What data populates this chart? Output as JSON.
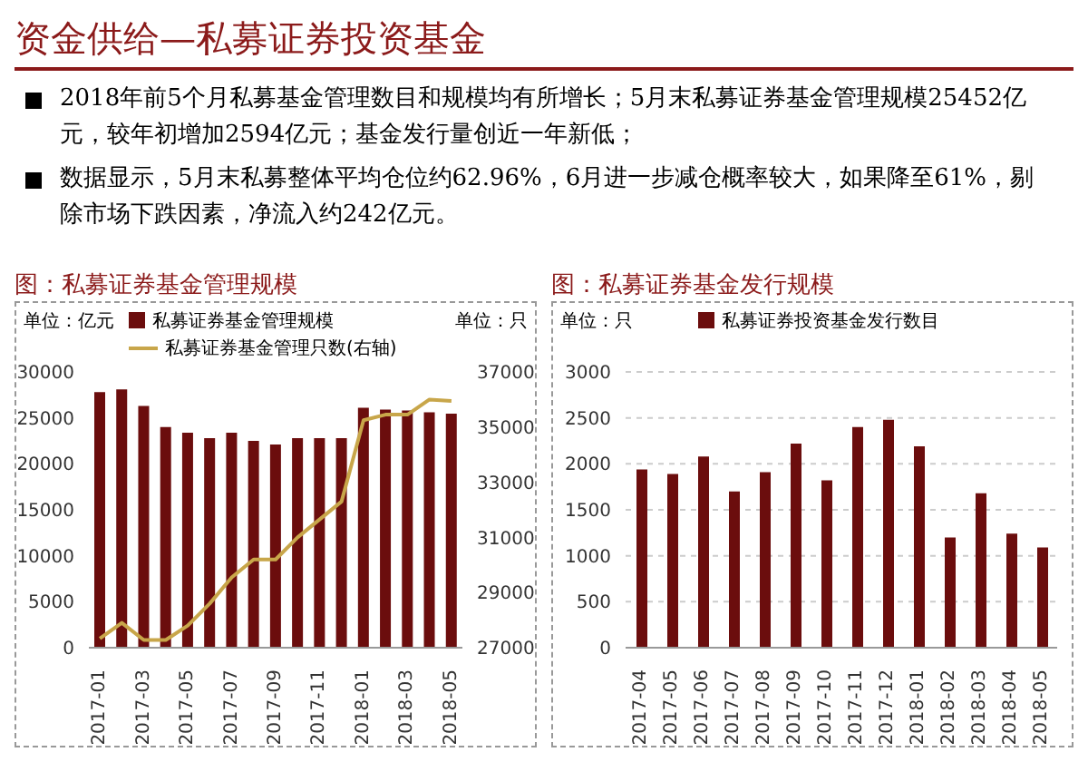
{
  "chart_data": [
    {
      "type": "other",
      "title": "资金供给—私募证券投资基金",
      "annotations": [
        "2018年前5个月私募基金管理数目和规模均有所增长；5月末私募证券基金管理规模25452亿元，较年初增加2594亿元；基金发行量创近一年新低；",
        "数据显示，5月末私募整体平均仓位约62.96%，6月进一步减仓概率较大，如果降至61%，剔除市场下跌因素，净流入约242亿元。"
      ]
    },
    {
      "type": "bar",
      "title": "图：私募证券基金管理规模",
      "ylabel": "单位：亿元",
      "y2label": "单位：只",
      "categories": [
        "2017-01",
        null,
        "2017-03",
        null,
        "2017-05",
        null,
        "2017-07",
        null,
        "2017-09",
        null,
        "2017-11",
        null,
        "2018-01",
        null,
        "2018-03",
        null,
        "2018-05"
      ],
      "series": [
        {
          "name": "私募证券基金管理规模",
          "type": "bar",
          "color": "#6b0d0d",
          "values": [
            27800,
            28100,
            26300,
            24000,
            23400,
            22800,
            23400,
            22500,
            22100,
            22800,
            22800,
            22800,
            26100,
            25900,
            25800,
            25600,
            25452
          ]
        },
        {
          "name": "私募证券基金管理只数(右轴)",
          "type": "line",
          "axis": "y2",
          "color": "#c8a64a",
          "values": [
            27330,
            27900,
            27280,
            27280,
            27800,
            28600,
            29550,
            30200,
            30200,
            31000,
            31650,
            32300,
            35250,
            35450,
            35450,
            36000,
            35950
          ]
        }
      ],
      "ylim": [
        0,
        30000
      ],
      "yticks": [
        0,
        5000,
        10000,
        15000,
        20000,
        25000,
        30000
      ],
      "y2lim": [
        27000,
        37000
      ],
      "y2ticks": [
        27000,
        29000,
        31000,
        33000,
        35000,
        37000
      ],
      "grid": false,
      "legend": "top left",
      "marker": "none",
      "line_style": "solid"
    },
    {
      "type": "bar",
      "title": "图：私募证券基金发行规模",
      "ylabel": "单位：只",
      "categories": [
        "2017-04",
        "2017-05",
        "2017-06",
        "2017-07",
        "2017-08",
        "2017-09",
        "2017-10",
        "2017-11",
        "2017-12",
        "2018-01",
        "2018-02",
        "2018-03",
        "2018-04",
        "2018-05"
      ],
      "series": [
        {
          "name": "私募证券投资基金发行数目",
          "color": "#6b0d0d",
          "values": [
            1940,
            1890,
            2080,
            1700,
            1910,
            2220,
            1820,
            2400,
            2480,
            2190,
            1200,
            1680,
            1240,
            1090
          ]
        }
      ],
      "ylim": [
        0,
        3000
      ],
      "yticks": [
        0,
        500,
        1000,
        1500,
        2000,
        2500,
        3000
      ],
      "grid": "y",
      "legend": "top"
    }
  ]
}
